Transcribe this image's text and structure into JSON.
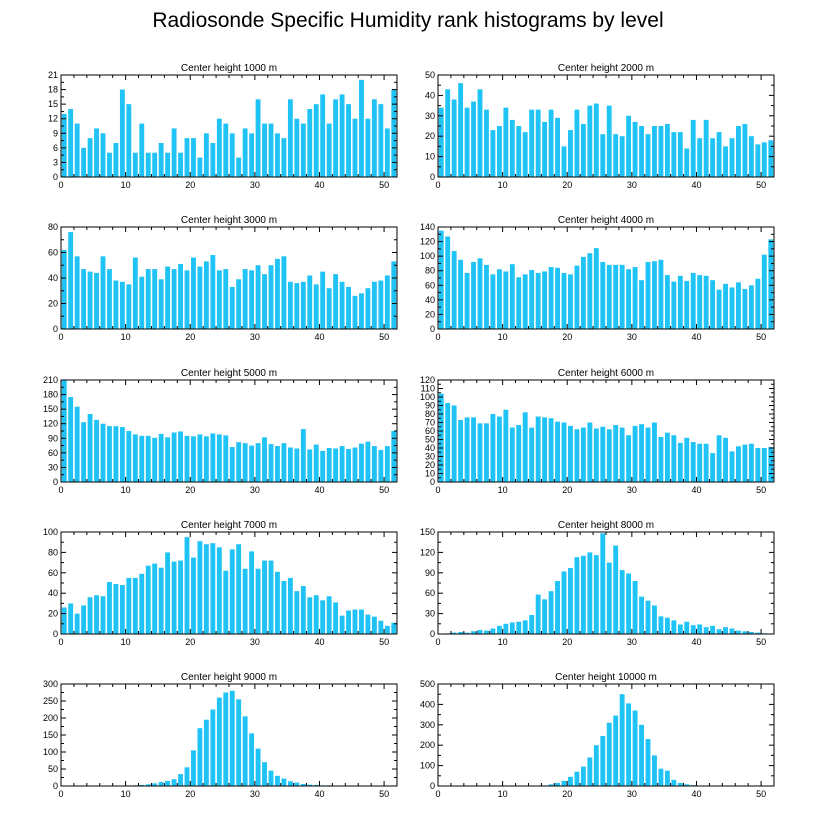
{
  "page": {
    "title": "Radiosonde Specific Humidity rank histograms by level"
  },
  "style": {
    "bar_color": "#1fc3f5",
    "axis_color": "#000000"
  },
  "chart_data": [
    {
      "type": "bar",
      "title": "Center height 1000 m",
      "x_ticks": [
        0,
        10,
        20,
        30,
        40,
        50
      ],
      "xlim": [
        0,
        52
      ],
      "ylim": [
        0,
        21
      ],
      "y_ticks": [
        0,
        3,
        6,
        9,
        12,
        15,
        18,
        21
      ],
      "values": [
        13,
        14,
        11,
        6,
        8,
        10,
        9,
        5,
        7,
        18,
        15,
        5,
        11,
        5,
        5,
        7,
        5,
        10,
        5,
        8,
        8,
        4,
        9,
        7,
        12,
        11,
        9,
        4,
        10,
        9,
        16,
        11,
        11,
        9,
        8,
        16,
        12,
        11,
        14,
        15,
        17,
        11,
        16,
        17,
        15,
        12,
        20,
        12,
        16,
        15,
        10,
        18
      ]
    },
    {
      "type": "bar",
      "title": "Center height 2000 m",
      "x_ticks": [
        0,
        10,
        20,
        30,
        40,
        50
      ],
      "xlim": [
        0,
        52
      ],
      "ylim": [
        0,
        50
      ],
      "y_ticks": [
        0,
        10,
        20,
        30,
        40,
        50
      ],
      "values": [
        34,
        43,
        38,
        46,
        34,
        37,
        43,
        33,
        23,
        25,
        34,
        28,
        25,
        22,
        33,
        33,
        27,
        33,
        29,
        15,
        23,
        33,
        26,
        35,
        36,
        21,
        35,
        21,
        20,
        30,
        27,
        25,
        21,
        25,
        25,
        26,
        22,
        22,
        14,
        28,
        19,
        28,
        19,
        22,
        15,
        19,
        25,
        26,
        20,
        16,
        17,
        18
      ]
    },
    {
      "type": "bar",
      "title": "Center height 3000 m",
      "x_ticks": [
        0,
        10,
        20,
        30,
        40,
        50
      ],
      "xlim": [
        0,
        52
      ],
      "ylim": [
        0,
        80
      ],
      "y_ticks": [
        0,
        20,
        40,
        60,
        80
      ],
      "values": [
        62,
        76,
        57,
        47,
        45,
        44,
        57,
        47,
        38,
        37,
        35,
        56,
        41,
        47,
        47,
        39,
        49,
        47,
        51,
        46,
        56,
        49,
        53,
        58,
        46,
        47,
        33,
        39,
        47,
        46,
        50,
        43,
        50,
        55,
        57,
        37,
        36,
        37,
        42,
        35,
        45,
        32,
        43,
        37,
        33,
        26,
        28,
        32,
        37,
        38,
        42,
        53
      ]
    },
    {
      "type": "bar",
      "title": "Center height 4000 m",
      "x_ticks": [
        0,
        10,
        20,
        30,
        40,
        50
      ],
      "xlim": [
        0,
        52
      ],
      "ylim": [
        0,
        140
      ],
      "y_ticks": [
        0,
        20,
        40,
        60,
        80,
        100,
        120,
        140
      ],
      "values": [
        135,
        127,
        107,
        95,
        77,
        92,
        97,
        88,
        75,
        82,
        79,
        89,
        71,
        75,
        81,
        77,
        79,
        85,
        84,
        77,
        75,
        87,
        99,
        104,
        111,
        92,
        88,
        88,
        88,
        82,
        85,
        67,
        92,
        93,
        95,
        74,
        65,
        73,
        66,
        77,
        74,
        73,
        67,
        54,
        62,
        57,
        64,
        55,
        60,
        69,
        102,
        123
      ]
    },
    {
      "type": "bar",
      "title": "Center height 5000 m",
      "x_ticks": [
        0,
        10,
        20,
        30,
        40,
        50
      ],
      "xlim": [
        0,
        52
      ],
      "ylim": [
        0,
        210
      ],
      "y_ticks": [
        0,
        30,
        60,
        90,
        120,
        150,
        180,
        210
      ],
      "values": [
        210,
        175,
        155,
        123,
        140,
        128,
        120,
        115,
        115,
        113,
        105,
        98,
        95,
        95,
        91,
        99,
        92,
        102,
        104,
        95,
        94,
        98,
        94,
        100,
        98,
        96,
        72,
        82,
        80,
        75,
        80,
        92,
        78,
        74,
        80,
        71,
        69,
        109,
        67,
        77,
        64,
        70,
        69,
        74,
        68,
        71,
        79,
        83,
        74,
        66,
        74,
        105
      ]
    },
    {
      "type": "bar",
      "title": "Center height 6000 m",
      "x_ticks": [
        0,
        10,
        20,
        30,
        40,
        50
      ],
      "xlim": [
        0,
        52
      ],
      "ylim": [
        0,
        120
      ],
      "y_ticks": [
        0,
        10,
        20,
        30,
        40,
        50,
        60,
        70,
        80,
        90,
        100,
        110,
        120
      ],
      "values": [
        104,
        93,
        90,
        73,
        76,
        76,
        69,
        69,
        80,
        77,
        85,
        64,
        67,
        82,
        64,
        77,
        76,
        75,
        71,
        70,
        66,
        62,
        64,
        70,
        63,
        65,
        62,
        67,
        64,
        55,
        66,
        68,
        64,
        70,
        53,
        58,
        55,
        46,
        52,
        47,
        45,
        45,
        34,
        55,
        52,
        36,
        42,
        44,
        45,
        40,
        40,
        41
      ]
    },
    {
      "type": "bar",
      "title": "Center height 7000 m",
      "x_ticks": [
        0,
        10,
        20,
        30,
        40,
        50
      ],
      "xlim": [
        0,
        52
      ],
      "ylim": [
        0,
        100
      ],
      "y_ticks": [
        0,
        20,
        40,
        60,
        80,
        100
      ],
      "values": [
        26,
        30,
        20,
        28,
        36,
        38,
        37,
        51,
        49,
        48,
        55,
        55,
        59,
        67,
        69,
        65,
        80,
        71,
        72,
        95,
        75,
        91,
        88,
        89,
        85,
        62,
        83,
        88,
        64,
        81,
        64,
        72,
        72,
        61,
        52,
        55,
        42,
        47,
        36,
        38,
        33,
        37,
        31,
        18,
        23,
        24,
        24,
        19,
        17,
        13,
        8,
        11
      ]
    },
    {
      "type": "bar",
      "title": "Center height 8000 m",
      "x_ticks": [
        0,
        10,
        20,
        30,
        40,
        50
      ],
      "xlim": [
        0,
        52
      ],
      "ylim": [
        0,
        150
      ],
      "y_ticks": [
        0,
        30,
        60,
        90,
        120,
        150
      ],
      "values": [
        0,
        1,
        2,
        3,
        2,
        4,
        6,
        5,
        8,
        12,
        15,
        17,
        18,
        20,
        28,
        58,
        51,
        63,
        78,
        92,
        97,
        113,
        115,
        120,
        116,
        148,
        105,
        130,
        94,
        89,
        78,
        55,
        49,
        42,
        26,
        24,
        20,
        14,
        18,
        13,
        14,
        10,
        12,
        7,
        10,
        8,
        5,
        4,
        3,
        2,
        1,
        0
      ]
    },
    {
      "type": "bar",
      "title": "Center height 9000 m",
      "x_ticks": [
        0,
        10,
        20,
        30,
        40,
        50
      ],
      "xlim": [
        0,
        52
      ],
      "ylim": [
        0,
        300
      ],
      "y_ticks": [
        0,
        50,
        100,
        150,
        200,
        250,
        300
      ],
      "values": [
        0,
        0,
        0,
        0,
        0,
        0,
        0,
        0,
        0,
        0,
        1,
        2,
        3,
        5,
        8,
        12,
        15,
        20,
        35,
        55,
        105,
        170,
        195,
        225,
        260,
        275,
        280,
        255,
        205,
        155,
        110,
        70,
        45,
        30,
        22,
        14,
        10,
        6,
        4,
        3,
        2,
        2,
        1,
        1,
        1,
        0,
        0,
        0,
        0,
        0,
        0,
        0
      ]
    },
    {
      "type": "bar",
      "title": "Center height 10000 m",
      "x_ticks": [
        0,
        10,
        20,
        30,
        40,
        50
      ],
      "xlim": [
        0,
        52
      ],
      "ylim": [
        0,
        500
      ],
      "y_ticks": [
        0,
        100,
        200,
        300,
        400,
        500
      ],
      "values": [
        0,
        0,
        0,
        0,
        0,
        0,
        0,
        0,
        0,
        0,
        0,
        0,
        0,
        0,
        0,
        1,
        3,
        8,
        15,
        25,
        45,
        70,
        95,
        140,
        200,
        245,
        310,
        345,
        450,
        405,
        370,
        300,
        230,
        150,
        85,
        75,
        30,
        15,
        8,
        4,
        2,
        1,
        0,
        0,
        0,
        0,
        0,
        0,
        0,
        0,
        0,
        0
      ]
    }
  ]
}
